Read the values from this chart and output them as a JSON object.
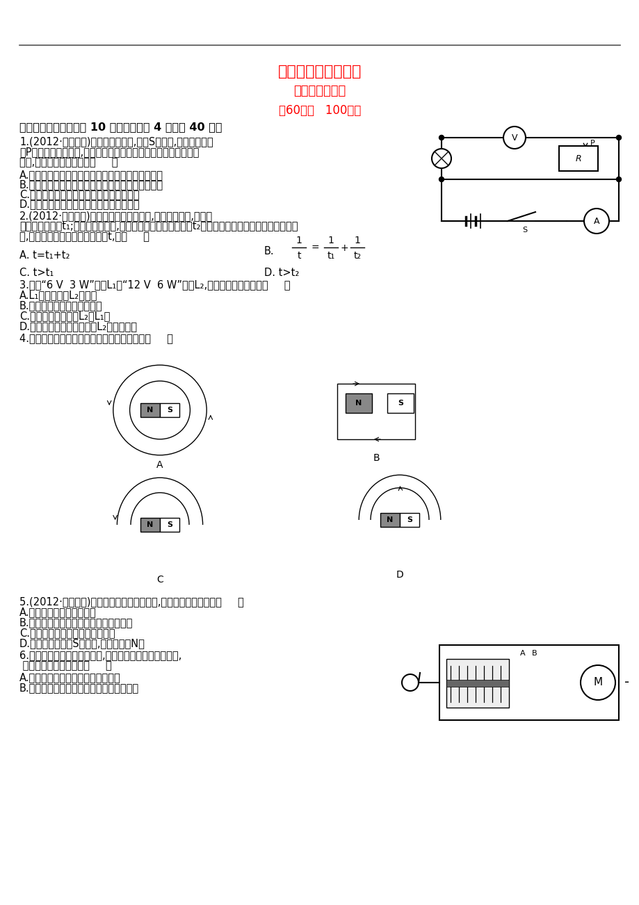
{
  "bg_color": "#ffffff",
  "text_color": "#000000",
  "title_color": "#ff0000",
  "line_color": "#555555",
  "title1": "期未综合检测（一）",
  "title2": "第十五～十九章",
  "title3": "（60分钟   100分）"
}
